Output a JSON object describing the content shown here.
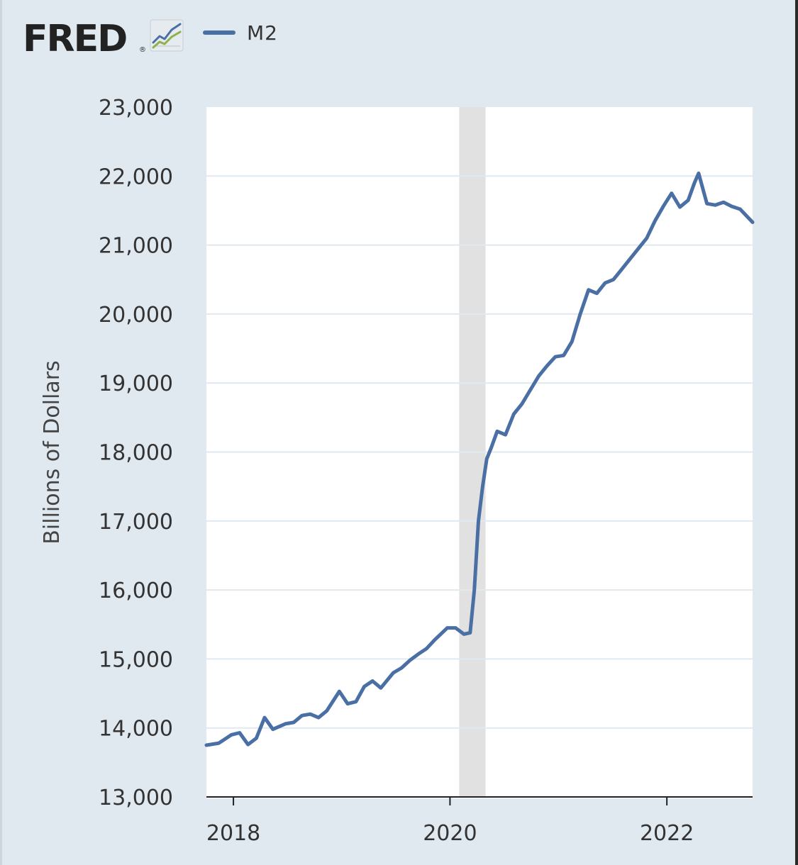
{
  "header": {
    "logo_text": "FRED",
    "logo_mark": "®",
    "logo_icon": "line-chart-icon"
  },
  "legend": {
    "label": "M2",
    "color": "#4a6fa5"
  },
  "colors": {
    "series": "#4a6fa5",
    "recession": "#e1e1e1",
    "background": "#e1e9f0",
    "plot": "#ffffff",
    "grid": "#e1e9f0"
  },
  "chart_data": {
    "type": "line",
    "ylabel": "Billions of Dollars",
    "xlabel": "",
    "ylim": [
      13000,
      23000
    ],
    "yticks": [
      13000,
      14000,
      15000,
      16000,
      17000,
      18000,
      19000,
      20000,
      21000,
      22000,
      23000
    ],
    "ytick_labels": [
      "13,000",
      "14,000",
      "15,000",
      "16,000",
      "17,000",
      "18,000",
      "19,000",
      "20,000",
      "21,000",
      "22,000",
      "23,000"
    ],
    "xlim": [
      "2017-10-02",
      "2022-10-17"
    ],
    "xticks": [
      "2018",
      "2020",
      "2022"
    ],
    "grid": true,
    "legend_position": "top-left",
    "recession_band": {
      "start": "2020-02-01",
      "end": "2020-04-30"
    },
    "series": [
      {
        "name": "M2",
        "x": [
          "2017-10-02",
          "2017-11-13",
          "2017-12-25",
          "2018-01-22",
          "2018-02-19",
          "2018-03-19",
          "2018-04-16",
          "2018-05-14",
          "2018-06-25",
          "2018-07-23",
          "2018-08-20",
          "2018-09-17",
          "2018-10-15",
          "2018-11-12",
          "2018-12-24",
          "2019-01-21",
          "2019-02-18",
          "2019-03-18",
          "2019-04-15",
          "2019-05-13",
          "2019-06-24",
          "2019-07-22",
          "2019-08-19",
          "2019-09-16",
          "2019-10-14",
          "2019-11-11",
          "2019-12-23",
          "2020-01-20",
          "2020-02-17",
          "2020-03-09",
          "2020-03-23",
          "2020-04-06",
          "2020-04-20",
          "2020-05-04",
          "2020-05-18",
          "2020-06-08",
          "2020-07-06",
          "2020-08-03",
          "2020-08-31",
          "2020-09-28",
          "2020-10-26",
          "2020-11-23",
          "2020-12-21",
          "2021-01-18",
          "2021-02-15",
          "2021-03-15",
          "2021-04-12",
          "2021-05-10",
          "2021-06-07",
          "2021-07-05",
          "2021-08-02",
          "2021-08-30",
          "2021-09-27",
          "2021-10-25",
          "2021-11-22",
          "2021-12-20",
          "2022-01-17",
          "2022-02-14",
          "2022-03-14",
          "2022-04-04",
          "2022-04-18",
          "2022-05-16",
          "2022-06-13",
          "2022-07-11",
          "2022-08-08",
          "2022-09-05",
          "2022-10-17"
        ],
        "values": [
          13750,
          13780,
          13900,
          13930,
          13760,
          13850,
          14150,
          13980,
          14060,
          14080,
          14180,
          14200,
          14150,
          14250,
          14530,
          14350,
          14380,
          14600,
          14680,
          14580,
          14800,
          14870,
          14980,
          15070,
          15150,
          15280,
          15450,
          15450,
          15360,
          15380,
          16000,
          17000,
          17500,
          17900,
          18050,
          18300,
          18250,
          18550,
          18700,
          18900,
          19100,
          19250,
          19380,
          19400,
          19600,
          20000,
          20350,
          20300,
          20450,
          20500,
          20650,
          20800,
          20950,
          21100,
          21350,
          21560,
          21750,
          21550,
          21650,
          21900,
          22040,
          21600,
          21580,
          21620,
          21560,
          21520,
          21330
        ]
      }
    ]
  }
}
